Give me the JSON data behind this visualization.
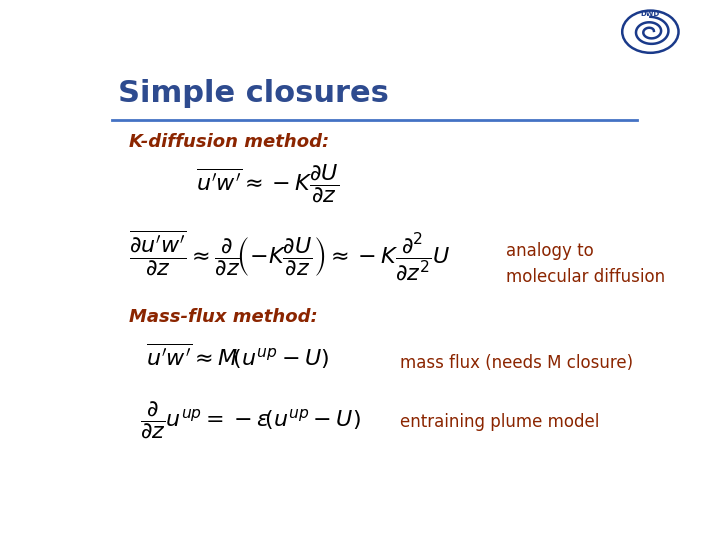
{
  "title": "Simple closures",
  "title_color": "#2E4B8F",
  "title_fontsize": 22,
  "bg_color": "#FFFFFF",
  "header_line_color": "#4472C4",
  "kdiff_label": "K-diffusion method:",
  "kdiff_label_color": "#8B2500",
  "kdiff_label_fontsize": 13,
  "analogy_text": "analogy to\nmolecular diffusion",
  "analogy_color": "#8B2500",
  "analogy_fontsize": 12,
  "massflux_label": "Mass-flux method:",
  "massflux_label_color": "#8B2500",
  "massflux_label_fontsize": 13,
  "massflux_note": "mass flux (needs M closure)",
  "massflux_note_color": "#8B2500",
  "massflux_note_fontsize": 12,
  "entraining_note": "entraining plume model",
  "entraining_note_color": "#8B2500",
  "entraining_note_fontsize": 12,
  "eq_color": "#000000",
  "eq_fontsize": 16
}
